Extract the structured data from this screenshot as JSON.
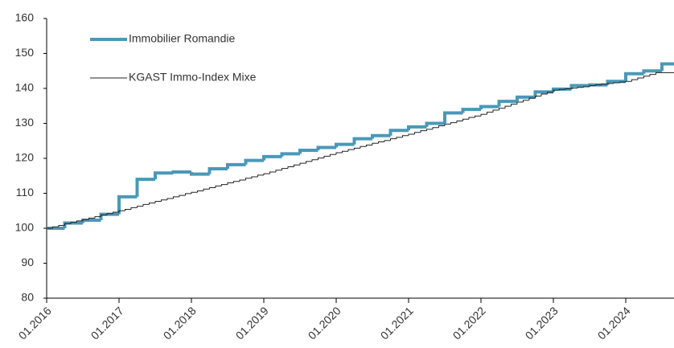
{
  "chart_data": {
    "type": "step",
    "series": [
      {
        "name": "Immobilier Romandie",
        "color": "#4a98b8",
        "width": 4,
        "x": [
          "01.2016",
          "04.2016",
          "07.2016",
          "10.2016",
          "01.2017",
          "04.2017",
          "07.2017",
          "10.2017",
          "01.2018",
          "04.2018",
          "07.2018",
          "10.2018",
          "01.2019",
          "04.2019",
          "07.2019",
          "10.2019",
          "01.2020",
          "04.2020",
          "07.2020",
          "10.2020",
          "01.2021",
          "04.2021",
          "07.2021",
          "10.2021",
          "01.2022",
          "04.2022",
          "07.2022",
          "10.2022",
          "01.2023",
          "04.2023",
          "07.2023",
          "10.2023",
          "01.2024",
          "04.2024",
          "07.2024"
        ],
        "values": [
          100,
          101.5,
          102.3,
          104,
          109,
          114,
          115.8,
          116.1,
          115.5,
          117,
          118.2,
          119.4,
          120.5,
          121.3,
          122.3,
          123.1,
          124,
          125.6,
          126.5,
          128,
          129,
          130,
          133,
          134,
          134.8,
          136.3,
          137.5,
          139,
          139.8,
          140.8,
          141,
          142,
          144.2,
          145,
          147
        ]
      },
      {
        "name": "KGAST Immo-Index Mixe",
        "color": "#222222",
        "width": 1,
        "x": [
          "01.2016",
          "02.2016",
          "03.2016",
          "04.2016",
          "05.2016",
          "06.2016",
          "07.2016",
          "08.2016",
          "09.2016",
          "10.2016",
          "11.2016",
          "12.2016",
          "01.2017",
          "02.2017",
          "03.2017",
          "04.2017",
          "05.2017",
          "06.2017",
          "07.2017",
          "08.2017",
          "09.2017",
          "10.2017",
          "11.2017",
          "12.2017",
          "01.2018",
          "02.2018",
          "03.2018",
          "04.2018",
          "05.2018",
          "06.2018",
          "07.2018",
          "08.2018",
          "09.2018",
          "10.2018",
          "11.2018",
          "12.2018",
          "01.2019",
          "02.2019",
          "03.2019",
          "04.2019",
          "05.2019",
          "06.2019",
          "07.2019",
          "08.2019",
          "09.2019",
          "10.2019",
          "11.2019",
          "12.2019",
          "01.2020",
          "02.2020",
          "03.2020",
          "04.2020",
          "05.2020",
          "06.2020",
          "07.2020",
          "08.2020",
          "09.2020",
          "10.2020",
          "11.2020",
          "12.2020",
          "01.2021",
          "02.2021",
          "03.2021",
          "04.2021",
          "05.2021",
          "06.2021",
          "07.2021",
          "08.2021",
          "09.2021",
          "10.2021",
          "11.2021",
          "12.2021",
          "01.2022",
          "02.2022",
          "03.2022",
          "04.2022",
          "05.2022",
          "06.2022",
          "07.2022",
          "08.2022",
          "09.2022",
          "10.2022",
          "11.2022",
          "12.2022",
          "01.2023",
          "02.2023",
          "03.2023",
          "04.2023",
          "05.2023",
          "06.2023",
          "07.2023",
          "08.2023",
          "09.2023",
          "10.2023",
          "11.2023",
          "12.2023",
          "01.2024",
          "02.2024",
          "03.2024",
          "04.2024",
          "05.2024",
          "06.2024",
          "07.2024",
          "08.2024"
        ],
        "values": [
          100,
          100.4,
          100.8,
          101.3,
          101.7,
          102.1,
          102.5,
          102.9,
          103.3,
          103.8,
          104.2,
          104.6,
          105,
          105.4,
          105.9,
          106.3,
          106.8,
          107.2,
          107.7,
          108.1,
          108.5,
          109,
          109.4,
          109.9,
          110.3,
          110.7,
          111.2,
          111.6,
          112.1,
          112.5,
          113,
          113.4,
          113.8,
          114.3,
          114.7,
          115.2,
          115.6,
          116.1,
          116.6,
          117.1,
          117.6,
          118.1,
          118.6,
          119.1,
          119.6,
          120.1,
          120.6,
          121.1,
          121.6,
          122,
          122.5,
          122.9,
          123.4,
          123.8,
          124.3,
          124.7,
          125.1,
          125.6,
          126,
          126.5,
          126.9,
          127.4,
          127.9,
          128.3,
          128.8,
          129.3,
          129.8,
          130.2,
          130.7,
          131.2,
          131.7,
          132.1,
          132.6,
          133.2,
          133.8,
          134.3,
          134.9,
          135.5,
          136.1,
          136.6,
          137.2,
          137.8,
          138.4,
          138.9,
          139.5,
          139.7,
          139.9,
          140.1,
          140.3,
          140.5,
          140.8,
          141,
          141.2,
          141.4,
          141.6,
          141.8,
          142,
          142.5,
          143,
          143.5,
          144,
          144.5,
          144.5,
          144.5
        ]
      }
    ],
    "xlim": [
      "01.2016",
      "09.2024"
    ],
    "xticks": [
      "01.2016",
      "01.2017",
      "01.2018",
      "01.2019",
      "01.2020",
      "01.2021",
      "01.2022",
      "01.2023",
      "01.2024"
    ],
    "ylim": [
      80,
      160
    ],
    "yticks": [
      80,
      90,
      100,
      110,
      120,
      130,
      140,
      150,
      160
    ],
    "grid": false,
    "legend": "upper left"
  }
}
